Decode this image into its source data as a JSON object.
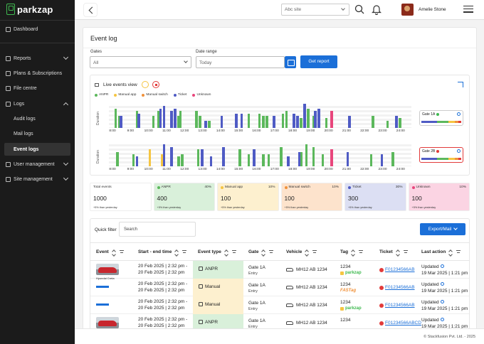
{
  "app": {
    "brand": "parkzap",
    "copyright": "© Stackfusion Pvt. Ltd. - 2025"
  },
  "sidebar": {
    "items": [
      {
        "label": "Dashboard"
      },
      {
        "label": "Reports"
      },
      {
        "label": "Plans & Subscriptions"
      },
      {
        "label": "File centre"
      },
      {
        "label": "Logs"
      },
      {
        "label": "Audit logs"
      },
      {
        "label": "Mail logs"
      },
      {
        "label": "Event logs"
      },
      {
        "label": "User management"
      },
      {
        "label": "Site management"
      }
    ]
  },
  "topbar": {
    "site_placeholder": "Abc site",
    "user_name": "Amelie Stone"
  },
  "page": {
    "title": "Event log",
    "filters": {
      "gates_label": "Gates",
      "gates_value": "All",
      "date_label": "Date range",
      "date_value": "Today",
      "report_button": "Get report"
    }
  },
  "live": {
    "title": "Live events view",
    "legend": [
      {
        "label": "ANPR",
        "color": "#5cb85c"
      },
      {
        "label": "Manual app",
        "color": "#f5c542"
      },
      {
        "label": "Manual switch",
        "color": "#f0913a"
      },
      {
        "label": "Ticket",
        "color": "#4f5bc4"
      },
      {
        "label": "Unknown",
        "color": "#e8467c"
      }
    ],
    "y_label": "Duration",
    "x_ticks": [
      "8:00",
      "9:00",
      "10:00",
      "11:00",
      "12:00",
      "13:00",
      "14:00",
      "15:00",
      "16:00",
      "17:00",
      "18:00",
      "19:00",
      "20:00",
      "21:00",
      "22:00",
      "23:00",
      "24:00"
    ],
    "gates": [
      {
        "label": "Gate 1A",
        "status_color": "#3fb950",
        "selected": false
      },
      {
        "label": "Gate 2B",
        "status_color": "#e23b3b",
        "selected": true
      }
    ]
  },
  "chart_data": [
    {
      "type": "bar",
      "title": "Gate 1A",
      "ylabel": "Duration",
      "x_ticks": [
        "8:00",
        "9:00",
        "10:00",
        "11:00",
        "12:00",
        "13:00",
        "14:00",
        "15:00",
        "16:00",
        "17:00",
        "18:00",
        "19:00",
        "20:00",
        "21:00",
        "22:00",
        "23:00",
        "24:00"
      ],
      "series": [
        {
          "name": "ANPR",
          "x": [
            8.1,
            8.3,
            9.3,
            10.2,
            10.5,
            11.6,
            11.7,
            12.6,
            12.8,
            13.3,
            15.5,
            16.1,
            16.3,
            16.5,
            17.4,
            17.6,
            18.4,
            18.8,
            19.1,
            19.8,
            22.4,
            23.2,
            23.9
          ],
          "values": [
            0.8,
            0.5,
            0.7,
            0.5,
            0.7,
            0.5,
            0.7,
            0.7,
            0.5,
            0.3,
            0.6,
            0.6,
            0.5,
            0.5,
            0.6,
            0.7,
            0.4,
            0.8,
            0.5,
            0.4,
            0.5,
            0.3,
            0.4
          ]
        },
        {
          "name": "Manual app",
          "x": [],
          "values": []
        },
        {
          "name": "Manual switch",
          "x": [],
          "values": []
        },
        {
          "name": "Ticket",
          "x": [
            8.4,
            9.4,
            10.6,
            10.8,
            11.2,
            11.4,
            13.1,
            14.0,
            14.8,
            15.1,
            16.9,
            18.0,
            18.2,
            18.6,
            19.2,
            19.4,
            21.1,
            23.7
          ],
          "values": [
            0.5,
            0.6,
            0.8,
            0.9,
            0.7,
            0.8,
            0.3,
            0.5,
            0.6,
            0.6,
            0.5,
            0.6,
            0.5,
            1.0,
            0.7,
            0.8,
            0.5,
            0.5
          ]
        },
        {
          "name": "Unknown",
          "x": [
            20.1
          ],
          "values": [
            0.7
          ]
        }
      ]
    },
    {
      "type": "bar",
      "title": "Gate 2B",
      "ylabel": "Duration",
      "x_ticks": [
        "8:00",
        "9:00",
        "10:00",
        "11:00",
        "12:00",
        "13:00",
        "14:00",
        "15:00",
        "16:00",
        "17:00",
        "18:00",
        "19:00",
        "20:00",
        "21:00",
        "22:00",
        "23:00",
        "24:00"
      ],
      "series": [
        {
          "name": "ANPR",
          "x": [
            8.2,
            9.1,
            11.6,
            11.8,
            12.7,
            15.0,
            15.5,
            16.3,
            16.6,
            17.3,
            18.4,
            18.7,
            19.1,
            19.6,
            22.3,
            23.5
          ],
          "values": [
            0.6,
            0.5,
            0.4,
            0.5,
            0.7,
            0.7,
            0.5,
            0.5,
            0.5,
            0.8,
            0.6,
            0.9,
            0.8,
            0.5,
            0.5,
            0.6
          ]
        },
        {
          "name": "Manual app",
          "x": [
            10.0,
            10.7
          ],
          "values": [
            0.7,
            0.5
          ]
        },
        {
          "name": "Manual switch",
          "x": [],
          "values": []
        },
        {
          "name": "Ticket",
          "x": [
            9.3,
            10.8,
            11.2,
            12.9,
            13.4,
            14.1,
            15.8,
            17.7,
            18.3,
            21.0,
            22.9
          ],
          "values": [
            0.4,
            0.9,
            0.8,
            0.7,
            0.4,
            0.8,
            0.7,
            0.4,
            0.6,
            0.6,
            0.5
          ]
        },
        {
          "name": "Unknown",
          "x": [
            20.1
          ],
          "values": [
            0.7
          ]
        }
      ]
    }
  ],
  "stats": [
    {
      "label": "Total events",
      "value": "1000",
      "pct": "",
      "sub": "+5% than yesterday",
      "color": "#ffffff",
      "dot": ""
    },
    {
      "label": "ANPR",
      "value": "400",
      "pct": "40%",
      "sub": "+5% than yesterday",
      "color": "#d9f0da",
      "dot": "#5cb85c"
    },
    {
      "label": "Manual app",
      "value": "100",
      "pct": "10%",
      "sub": "+5% than yesterday",
      "color": "#fdf0cf",
      "dot": "#f5c542"
    },
    {
      "label": "Manual switch",
      "value": "100",
      "pct": "10%",
      "sub": "+5% than yesterday",
      "color": "#fde3cc",
      "dot": "#f0913a"
    },
    {
      "label": "Ticket",
      "value": "300",
      "pct": "30%",
      "sub": "+5% than yesterday",
      "color": "#dcdff3",
      "dot": "#4f5bc4"
    },
    {
      "label": "Unknown",
      "value": "100",
      "pct": "10%",
      "sub": "+5% than yesterday",
      "color": "#fbd4e3",
      "dot": "#e8467c"
    }
  ],
  "table": {
    "quick_filter_label": "Quick filter",
    "search_placeholder": "Search",
    "export_label": "Export/Mail",
    "headers": [
      "Event",
      "Start - end time",
      "Event type",
      "Gate",
      "Vehicle",
      "Tag",
      "Ticket",
      "Last action"
    ],
    "rows": [
      {
        "thumb": "car",
        "caption": "Hyundai Creta",
        "start": "20 Feb 2025 | 2:32 pm -",
        "end": "20 Feb 2025 | 2:32 pm",
        "type": "ANPR",
        "type_color": "#d9f0da",
        "gate": "Gate 1A",
        "gate_sub": "Entry",
        "vehicle": "MH12 AB 1234",
        "tag": "1234",
        "tag_brand": "parkzap",
        "ticket": "F01234566AB",
        "action": "Updated",
        "action_time": "19 Mar 2025 | 1:21 pm"
      },
      {
        "thumb": "line",
        "caption": "",
        "start": "20 Feb 2025 | 2:32 pm -",
        "end": "20 Feb 2025 | 2:32 pm",
        "type": "Manual",
        "type_color": "#fdf0cf",
        "gate": "Gate 1A",
        "gate_sub": "Entry",
        "vehicle": "MH12 AB 1234",
        "tag": "1234",
        "tag_brand": "FASTag",
        "ticket": "F01234566AB",
        "action": "Updated",
        "action_time": "19 Mar 2025 | 1:21 pm"
      },
      {
        "thumb": "line",
        "caption": "",
        "start": "20 Feb 2025 | 2:32 pm -",
        "end": "20 Feb 2025 | 2:32 pm",
        "type": "Manual",
        "type_color": "#fdf0cf",
        "gate": "Gate 1A",
        "gate_sub": "Entry",
        "vehicle": "MH12 AB 1234",
        "tag": "1234",
        "tag_brand": "parkzap",
        "ticket": "F01234566AB",
        "action": "Updated",
        "action_time": "19 Mar 2025 | 1:21 pm"
      },
      {
        "thumb": "car",
        "caption": "",
        "start": "20 Feb 2025 | 2:32 pm -",
        "end": "20 Feb 2025 | 2:32 pm",
        "type": "ANPR",
        "type_color": "#d9f0da",
        "gate": "Gate 1A",
        "gate_sub": "Entry",
        "vehicle": "MH12 AB 1234",
        "tag": "1234",
        "tag_brand": "",
        "ticket": "F01234566ABCD",
        "action": "Updated",
        "action_time": "19 Mar 2025 | 1:21 pm"
      }
    ]
  }
}
